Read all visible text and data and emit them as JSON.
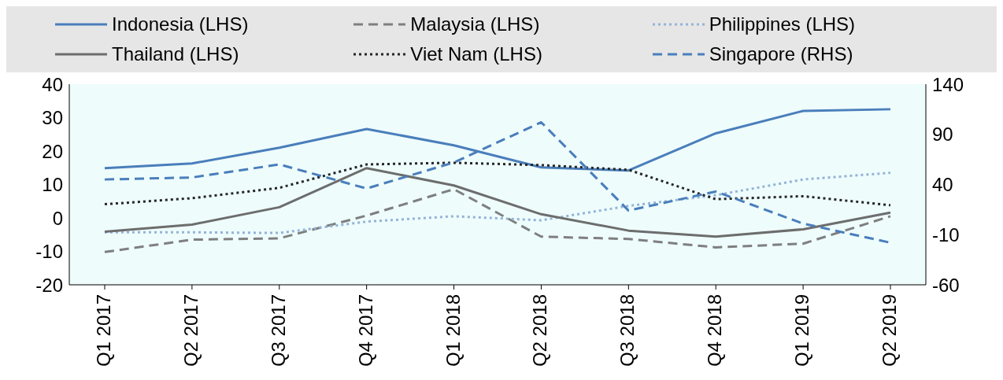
{
  "chart_data": {
    "type": "line",
    "categories": [
      "Q1 2017",
      "Q2 2017",
      "Q3 2017",
      "Q4 2017",
      "Q1 2018",
      "Q2 2018",
      "Q3 2018",
      "Q4 2018",
      "Q1 2019",
      "Q2 2019"
    ],
    "series": [
      {
        "name": "Indonesia (LHS)",
        "color": "#4a7ebb",
        "line_style": "solid",
        "values": [
          14.9,
          16.3,
          21,
          26.6,
          21.7,
          15.1,
          14.2,
          25.3,
          32,
          32.5
        ]
      },
      {
        "name": "Malaysia (LHS)",
        "color": "#7f7f7f",
        "line_style": "dashed",
        "values": [
          -10.2,
          -6.5,
          -6.1,
          0.7,
          8.6,
          -5.6,
          -6.3,
          -8.8,
          -7.7,
          0.5
        ]
      },
      {
        "name": "Philippines (LHS)",
        "color": "#95b3d7",
        "line_style": "dotted",
        "values": [
          -4.3,
          -4.3,
          -4.5,
          -1.1,
          0.5,
          -0.7,
          3.6,
          6.8,
          11.5,
          13.5
        ]
      },
      {
        "name": "Thailand (LHS)",
        "color": "#6d6d6d",
        "line_style": "solid",
        "values": [
          -4.1,
          -2,
          3.2,
          14.9,
          9.7,
          1.1,
          -3.8,
          -5.6,
          -3.4,
          1.6
        ]
      },
      {
        "name": "Viet Nam (LHS)",
        "color": "#262626",
        "line_style": "dotted",
        "values": [
          4.1,
          5.9,
          9,
          16,
          16.5,
          15.8,
          14.4,
          5.6,
          6.5,
          3.8
        ]
      },
      {
        "name": "Singapore (RHS)",
        "color": "#4a7ebb",
        "line_style": "dashed",
        "axis": "y2",
        "values": [
          45,
          47,
          60,
          36,
          62,
          102,
          14,
          33,
          1,
          -18
        ]
      }
    ],
    "ylim": [
      -20,
      40
    ],
    "yticks": [
      -20,
      -10,
      0,
      10,
      20,
      30,
      40
    ],
    "y2lim": [
      -60,
      140
    ],
    "y2ticks": [
      -60,
      -10,
      40,
      90,
      140
    ],
    "grid": false,
    "legend": "top"
  }
}
